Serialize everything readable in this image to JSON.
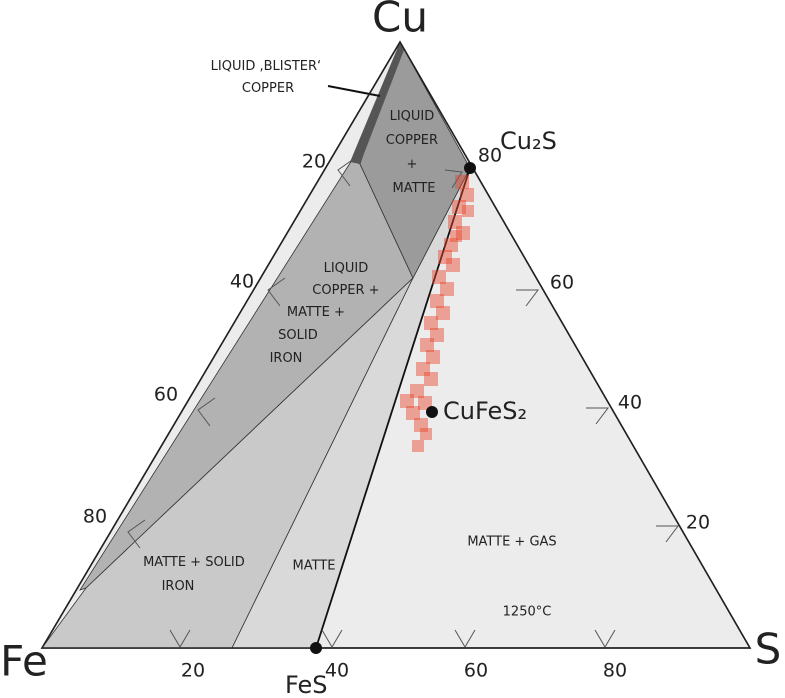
{
  "vertices": {
    "top": "Cu",
    "left": "Fe",
    "right": "S"
  },
  "compounds": {
    "cu2s": "Cu₂S",
    "cufes2": "CuFeS₂",
    "fes": "FeS"
  },
  "ticks": {
    "left": [
      "20",
      "40",
      "60",
      "80"
    ],
    "bottom": [
      "20",
      "40",
      "60",
      "80"
    ],
    "right": [
      "80",
      "60",
      "40",
      "20"
    ]
  },
  "regions": [
    {
      "lines": [
        "LIQUID ,BLISTER‘",
        "COPPER"
      ]
    },
    {
      "lines": [
        "LIQUID",
        "COPPER",
        "+",
        "MATTE"
      ]
    },
    {
      "lines": [
        "LIQUID",
        "COPPER +",
        "MATTE +",
        "SOLID",
        "IRON"
      ]
    },
    {
      "lines": [
        "MATTE + SOLID",
        "IRON"
      ]
    },
    {
      "lines": [
        "MATTE"
      ]
    },
    {
      "lines": [
        "MATTE + GAS"
      ]
    }
  ],
  "temperature": "1250°C"
}
